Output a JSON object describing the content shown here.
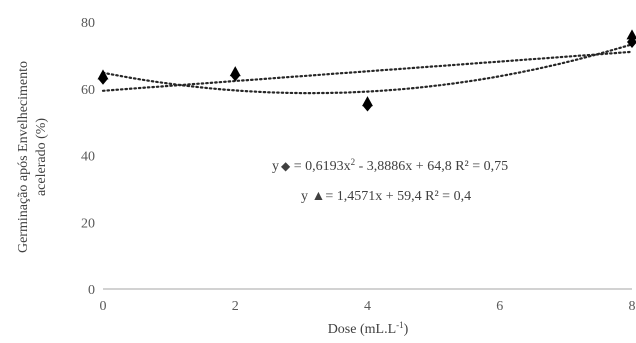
{
  "chart_data": {
    "type": "scatter",
    "xlabel": "Dose (mL.L",
    "xlabel_sup": "-1",
    "xlabel_end": ")",
    "ylabel_line1": "Germinação após Envelhecimento",
    "ylabel_line2": "acelerado (%)",
    "xlim": [
      0,
      8
    ],
    "ylim": [
      0,
      80
    ],
    "x_ticks": [
      "0",
      "2",
      "4",
      "6",
      "8"
    ],
    "y_ticks": [
      "0",
      "20",
      "40",
      "60",
      "80"
    ],
    "grid": false,
    "series": [
      {
        "marker": "diamond",
        "x": [
          0,
          2,
          4,
          8
        ],
        "y": [
          63,
          64,
          55,
          74
        ],
        "trendline": {
          "type": "polynomial",
          "coefficients": [
            64.8,
            -3.8886,
            0.6193
          ]
        }
      },
      {
        "marker": "triangle",
        "x": [
          0,
          2,
          4,
          8
        ],
        "y": [
          64,
          65,
          56,
          76
        ],
        "trendline": {
          "type": "linear",
          "coefficients": [
            59.4,
            1.4571
          ]
        }
      }
    ],
    "annotations": [
      {
        "prefix": "y",
        "symbol": "◆",
        "text_before_sup": " = 0,6193x",
        "sup": "2",
        "text_after_sup": " - 3,8886x + 64,8 R² = 0,75"
      },
      {
        "prefix": "y ",
        "symbol": "▲",
        "text": "= 1,4571x + 59,4 R² = 0,4"
      }
    ],
    "colors": {
      "marker": "#000000",
      "trend": "#262626",
      "axis": "#a6a6a6",
      "text": "#404040"
    }
  }
}
